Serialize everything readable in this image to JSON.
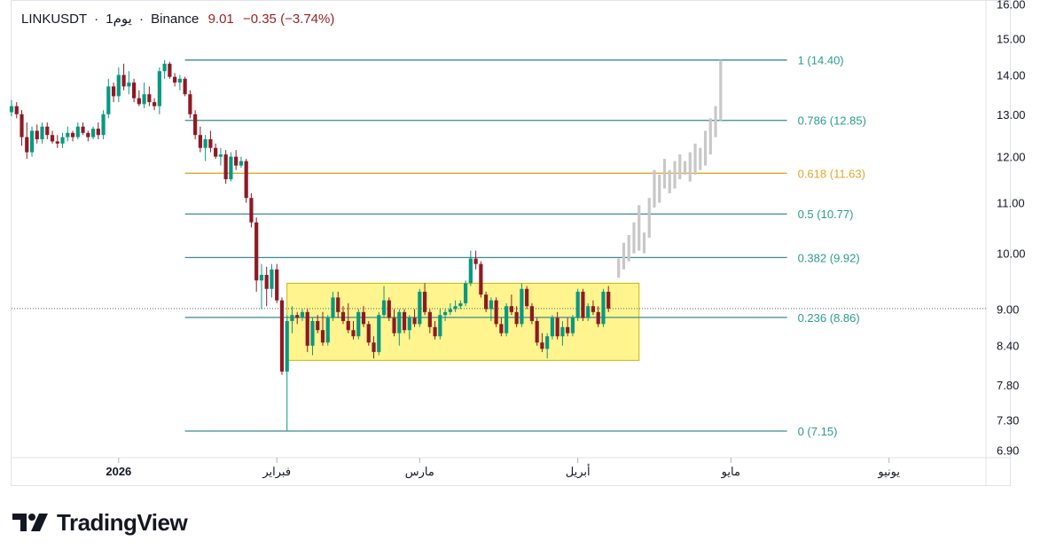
{
  "header": {
    "symbol": "LINKUSDT",
    "interval": "1يوم",
    "exchange": "Binance",
    "last": "9.01",
    "change": "−0.35",
    "change_pct": "(−3.74%)"
  },
  "brand": {
    "name": "TradingView",
    "logo_icon": "tradingview-logo-icon"
  },
  "colors": {
    "up": "#089981",
    "down": "#8e1a24",
    "fib_line": "#3c8a8f",
    "fib_label": "#2a9d8f",
    "fib_golden": "#e0a92a",
    "box_fill": "#fff27a",
    "box_stroke": "#c9b800",
    "projection": "#c8c8c8"
  },
  "chart_data": {
    "type": "candlestick",
    "y_axis": {
      "range": [
        6.8,
        16.1
      ],
      "scale": "log",
      "ticks": [
        "16.00",
        "15.00",
        "14.00",
        "13.00",
        "12.00",
        "11.00",
        "10.00",
        "9.00",
        "8.40",
        "7.80",
        "7.30",
        "6.90"
      ]
    },
    "x_axis": {
      "range": [
        "2025-12-11",
        "2026-06-20"
      ],
      "ticks": [
        {
          "date": "2026-01-01",
          "label": "2026",
          "bold": true
        },
        {
          "date": "2026-02-01",
          "label": "فبراير",
          "bold": false
        },
        {
          "date": "2026-03-01",
          "label": "مارس",
          "bold": false
        },
        {
          "date": "2026-04-01",
          "label": "أبريل",
          "bold": false
        },
        {
          "date": "2026-05-01",
          "label": "مايو",
          "bold": false
        },
        {
          "date": "2026-06-01",
          "label": "يونيو",
          "bold": false
        }
      ]
    },
    "start_date": "2025-12-11",
    "candles": [
      [
        13.05,
        13.35,
        12.95,
        13.2
      ],
      [
        13.2,
        13.3,
        12.9,
        13.0
      ],
      [
        13.0,
        13.1,
        12.25,
        12.45
      ],
      [
        12.45,
        12.8,
        11.95,
        12.1
      ],
      [
        12.1,
        12.7,
        12.0,
        12.6
      ],
      [
        12.6,
        12.75,
        12.3,
        12.4
      ],
      [
        12.4,
        12.8,
        12.3,
        12.7
      ],
      [
        12.7,
        12.8,
        12.4,
        12.5
      ],
      [
        12.5,
        12.6,
        12.3,
        12.35
      ],
      [
        12.35,
        12.5,
        12.2,
        12.3
      ],
      [
        12.3,
        12.55,
        12.2,
        12.45
      ],
      [
        12.45,
        12.7,
        12.35,
        12.55
      ],
      [
        12.55,
        12.6,
        12.35,
        12.45
      ],
      [
        12.45,
        12.8,
        12.4,
        12.7
      ],
      [
        12.7,
        12.8,
        12.5,
        12.55
      ],
      [
        12.55,
        12.6,
        12.35,
        12.45
      ],
      [
        12.45,
        12.7,
        12.4,
        12.65
      ],
      [
        12.65,
        12.8,
        12.4,
        12.5
      ],
      [
        12.5,
        13.1,
        12.4,
        13.0
      ],
      [
        13.0,
        13.9,
        12.9,
        13.7
      ],
      [
        13.7,
        13.8,
        13.3,
        13.45
      ],
      [
        13.45,
        14.2,
        13.3,
        14.0
      ],
      [
        14.0,
        14.3,
        13.6,
        13.7
      ],
      [
        13.7,
        14.1,
        13.5,
        13.8
      ],
      [
        13.8,
        13.9,
        13.3,
        13.4
      ],
      [
        13.4,
        13.6,
        13.2,
        13.25
      ],
      [
        13.25,
        13.8,
        13.15,
        13.5
      ],
      [
        13.5,
        13.7,
        13.2,
        13.3
      ],
      [
        13.3,
        13.4,
        13.1,
        13.2
      ],
      [
        13.2,
        14.2,
        13.0,
        14.1
      ],
      [
        14.1,
        14.4,
        13.9,
        14.3
      ],
      [
        14.3,
        14.35,
        13.9,
        13.95
      ],
      [
        13.95,
        14.05,
        13.7,
        13.8
      ],
      [
        13.8,
        14.0,
        13.6,
        13.9
      ],
      [
        13.9,
        13.95,
        13.45,
        13.5
      ],
      [
        13.5,
        13.6,
        12.9,
        13.0
      ],
      [
        13.0,
        13.1,
        12.4,
        12.5
      ],
      [
        12.5,
        12.7,
        12.1,
        12.2
      ],
      [
        12.2,
        12.5,
        11.9,
        12.4
      ],
      [
        12.4,
        12.6,
        12.1,
        12.2
      ],
      [
        12.2,
        12.3,
        11.95,
        12.0
      ],
      [
        12.0,
        12.2,
        11.8,
        12.05
      ],
      [
        12.05,
        12.15,
        11.4,
        11.5
      ],
      [
        11.5,
        12.1,
        11.45,
        12.0
      ],
      [
        12.0,
        12.15,
        11.7,
        11.8
      ],
      [
        11.8,
        12.0,
        11.75,
        11.9
      ],
      [
        11.9,
        11.95,
        11.0,
        11.1
      ],
      [
        11.1,
        11.2,
        10.5,
        10.6
      ],
      [
        10.6,
        10.7,
        9.3,
        9.5
      ],
      [
        9.5,
        9.8,
        9.0,
        9.6
      ],
      [
        9.6,
        9.75,
        9.05,
        9.35
      ],
      [
        9.35,
        9.8,
        9.2,
        9.7
      ],
      [
        9.7,
        9.8,
        9.1,
        9.15
      ],
      [
        9.15,
        9.2,
        7.95,
        8.0
      ],
      [
        8.0,
        8.9,
        7.15,
        8.8
      ],
      [
        8.8,
        9.05,
        8.6,
        8.9
      ],
      [
        8.9,
        8.95,
        8.75,
        8.85
      ],
      [
        8.85,
        9.0,
        8.8,
        8.95
      ],
      [
        8.95,
        9.0,
        8.3,
        8.4
      ],
      [
        8.4,
        8.85,
        8.25,
        8.8
      ],
      [
        8.8,
        8.9,
        8.6,
        8.65
      ],
      [
        8.65,
        8.95,
        8.4,
        8.45
      ],
      [
        8.45,
        8.9,
        8.4,
        8.85
      ],
      [
        8.85,
        9.3,
        8.8,
        9.2
      ],
      [
        9.2,
        9.3,
        8.85,
        8.95
      ],
      [
        8.95,
        9.05,
        8.75,
        8.8
      ],
      [
        8.8,
        9.1,
        8.6,
        8.65
      ],
      [
        8.65,
        8.8,
        8.5,
        8.55
      ],
      [
        8.55,
        9.0,
        8.5,
        8.95
      ],
      [
        8.95,
        9.05,
        8.7,
        8.75
      ],
      [
        8.75,
        8.8,
        8.4,
        8.45
      ],
      [
        8.45,
        8.55,
        8.2,
        8.3
      ],
      [
        8.3,
        8.95,
        8.25,
        8.9
      ],
      [
        8.9,
        9.4,
        8.85,
        9.15
      ],
      [
        9.15,
        9.2,
        8.8,
        8.85
      ],
      [
        8.85,
        9.0,
        8.55,
        8.6
      ],
      [
        8.6,
        9.0,
        8.4,
        8.95
      ],
      [
        8.95,
        9.0,
        8.6,
        8.65
      ],
      [
        8.65,
        8.9,
        8.5,
        8.85
      ],
      [
        8.85,
        9.0,
        8.7,
        8.75
      ],
      [
        8.75,
        9.35,
        8.7,
        9.3
      ],
      [
        9.3,
        9.45,
        8.9,
        8.95
      ],
      [
        8.95,
        9.0,
        8.6,
        8.7
      ],
      [
        8.7,
        8.8,
        8.5,
        8.55
      ],
      [
        8.55,
        9.0,
        8.5,
        8.9
      ],
      [
        8.9,
        9.0,
        8.8,
        8.95
      ],
      [
        8.95,
        9.1,
        8.9,
        9.0
      ],
      [
        9.0,
        9.15,
        8.95,
        9.05
      ],
      [
        9.05,
        9.15,
        9.0,
        9.1
      ],
      [
        9.1,
        9.5,
        9.05,
        9.45
      ],
      [
        9.45,
        10.05,
        9.4,
        9.9
      ],
      [
        9.9,
        10.05,
        9.7,
        9.8
      ],
      [
        9.8,
        9.85,
        9.2,
        9.25
      ],
      [
        9.25,
        9.3,
        8.95,
        9.0
      ],
      [
        9.0,
        9.2,
        8.8,
        9.15
      ],
      [
        9.15,
        9.2,
        8.7,
        8.75
      ],
      [
        8.75,
        8.85,
        8.55,
        8.6
      ],
      [
        8.6,
        9.1,
        8.55,
        9.05
      ],
      [
        9.05,
        9.25,
        8.9,
        8.95
      ],
      [
        8.95,
        9.05,
        8.7,
        8.75
      ],
      [
        8.75,
        9.45,
        8.7,
        9.35
      ],
      [
        9.35,
        9.4,
        9.0,
        9.05
      ],
      [
        9.05,
        9.1,
        8.75,
        8.8
      ],
      [
        8.8,
        8.85,
        8.4,
        8.45
      ],
      [
        8.45,
        8.6,
        8.3,
        8.35
      ],
      [
        8.35,
        8.6,
        8.2,
        8.55
      ],
      [
        8.55,
        8.9,
        8.5,
        8.85
      ],
      [
        8.85,
        8.95,
        8.5,
        8.55
      ],
      [
        8.55,
        8.8,
        8.4,
        8.7
      ],
      [
        8.7,
        8.85,
        8.55,
        8.6
      ],
      [
        8.6,
        8.9,
        8.55,
        8.85
      ],
      [
        8.85,
        9.35,
        8.8,
        9.3
      ],
      [
        9.3,
        9.35,
        8.8,
        8.85
      ],
      [
        8.85,
        9.1,
        8.8,
        9.05
      ],
      [
        9.05,
        9.15,
        8.9,
        8.95
      ],
      [
        8.95,
        9.05,
        8.7,
        8.75
      ],
      [
        8.75,
        9.35,
        8.7,
        9.3
      ],
      [
        9.3,
        9.4,
        8.95,
        9.01
      ]
    ],
    "projection": [
      [
        9.55,
        9.9
      ],
      [
        9.7,
        10.2
      ],
      [
        9.85,
        10.35
      ],
      [
        10.0,
        10.6
      ],
      [
        10.05,
        10.95
      ],
      [
        10.0,
        10.4
      ],
      [
        10.3,
        11.1
      ],
      [
        10.9,
        11.7
      ],
      [
        11.0,
        11.6
      ],
      [
        11.3,
        11.95
      ],
      [
        11.2,
        11.7
      ],
      [
        11.3,
        11.9
      ],
      [
        11.5,
        12.05
      ],
      [
        11.6,
        11.9
      ],
      [
        11.45,
        12.1
      ],
      [
        11.6,
        12.3
      ],
      [
        11.7,
        12.2
      ],
      [
        11.8,
        12.6
      ],
      [
        12.05,
        12.9
      ],
      [
        12.45,
        13.2
      ],
      [
        12.85,
        14.4
      ]
    ],
    "range_box": {
      "from_date": "2026-02-03",
      "to_date": "2026-04-13",
      "low": 8.17,
      "high": 9.45
    },
    "current_price_line": 9.01,
    "fibonacci": {
      "from_date": "2026-01-14",
      "to_date": "2026-05-12",
      "levels": [
        {
          "ratio": "1",
          "price": 14.4,
          "label": "1 (14.40)",
          "golden": false
        },
        {
          "ratio": "0.786",
          "price": 12.85,
          "label": "0.786 (12.85)",
          "golden": false
        },
        {
          "ratio": "0.618",
          "price": 11.63,
          "label": "0.618 (11.63)",
          "golden": true
        },
        {
          "ratio": "0.5",
          "price": 10.77,
          "label": "0.5 (10.77)",
          "golden": false
        },
        {
          "ratio": "0.382",
          "price": 9.92,
          "label": "0.382 (9.92)",
          "golden": false
        },
        {
          "ratio": "0.236",
          "price": 8.86,
          "label": "0.236 (8.86)",
          "golden": false
        },
        {
          "ratio": "0",
          "price": 7.15,
          "label": "0 (7.15)",
          "golden": false
        }
      ]
    }
  }
}
